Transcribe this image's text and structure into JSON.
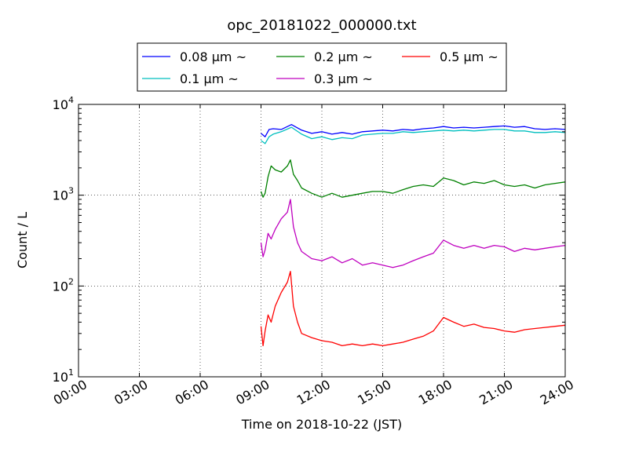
{
  "chart_data": {
    "type": "line",
    "title": "opc_20181022_000000.txt",
    "xlabel": "Time on 2018-10-22 (JST)",
    "ylabel": "Count / L",
    "x_unit": "hours",
    "xlim": [
      0,
      24
    ],
    "x_ticks": [
      {
        "value": 0,
        "label": "00:00"
      },
      {
        "value": 3,
        "label": "03:00"
      },
      {
        "value": 6,
        "label": "06:00"
      },
      {
        "value": 9,
        "label": "09:00"
      },
      {
        "value": 12,
        "label": "12:00"
      },
      {
        "value": 15,
        "label": "15:00"
      },
      {
        "value": 18,
        "label": "18:00"
      },
      {
        "value": 21,
        "label": "21:00"
      },
      {
        "value": 24,
        "label": "24:00"
      }
    ],
    "y_scale": "log",
    "ylim": [
      10,
      10000
    ],
    "y_ticks": [
      {
        "value": 10,
        "base": "10",
        "exp": "1"
      },
      {
        "value": 100,
        "base": "10",
        "exp": "2"
      },
      {
        "value": 1000,
        "base": "10",
        "exp": "3"
      },
      {
        "value": 10000,
        "base": "10",
        "exp": "4"
      }
    ],
    "grid": true,
    "legend_position": "top",
    "series": [
      {
        "name": "0.08 μm ~",
        "color": "#0000ff",
        "x": [
          9.0,
          9.2,
          9.4,
          9.6,
          10.0,
          10.5,
          11.0,
          11.5,
          12.0,
          12.5,
          13.0,
          13.5,
          14.0,
          14.5,
          15.0,
          15.5,
          16.0,
          16.5,
          17.0,
          17.5,
          18.0,
          18.5,
          19.0,
          19.5,
          20.0,
          20.5,
          21.0,
          21.5,
          22.0,
          22.5,
          23.0,
          23.5,
          24.0
        ],
        "y": [
          4800,
          4400,
          5300,
          5400,
          5300,
          6000,
          5200,
          4800,
          5000,
          4700,
          4900,
          4700,
          5000,
          5100,
          5200,
          5100,
          5300,
          5200,
          5400,
          5500,
          5700,
          5500,
          5600,
          5500,
          5600,
          5700,
          5800,
          5600,
          5700,
          5400,
          5300,
          5400,
          5300
        ]
      },
      {
        "name": "0.1 μm ~",
        "color": "#00bfbf",
        "x": [
          9.0,
          9.2,
          9.4,
          9.6,
          10.0,
          10.5,
          11.0,
          11.5,
          12.0,
          12.5,
          13.0,
          13.5,
          14.0,
          14.5,
          15.0,
          15.5,
          16.0,
          16.5,
          17.0,
          17.5,
          18.0,
          18.5,
          19.0,
          19.5,
          20.0,
          20.5,
          21.0,
          21.5,
          22.0,
          22.5,
          23.0,
          23.5,
          24.0
        ],
        "y": [
          4000,
          3700,
          4400,
          4700,
          5000,
          5600,
          4700,
          4200,
          4400,
          4100,
          4300,
          4200,
          4600,
          4700,
          4800,
          4800,
          5000,
          4900,
          5000,
          5100,
          5200,
          5100,
          5200,
          5100,
          5200,
          5300,
          5300,
          5100,
          5100,
          4900,
          4900,
          5000,
          4900
        ]
      },
      {
        "name": "0.2 μm ~",
        "color": "#008000",
        "x": [
          9.0,
          9.1,
          9.2,
          9.35,
          9.5,
          9.7,
          10.0,
          10.3,
          10.45,
          10.6,
          10.8,
          11.0,
          11.5,
          12.0,
          12.5,
          13.0,
          13.5,
          14.0,
          14.5,
          15.0,
          15.5,
          16.0,
          16.5,
          17.0,
          17.5,
          18.0,
          18.5,
          19.0,
          19.5,
          20.0,
          20.5,
          21.0,
          21.5,
          22.0,
          22.5,
          23.0,
          23.5,
          24.0
        ],
        "y": [
          1100,
          950,
          1050,
          1600,
          2100,
          1900,
          1800,
          2100,
          2450,
          1700,
          1450,
          1200,
          1050,
          950,
          1050,
          950,
          1000,
          1050,
          1100,
          1100,
          1050,
          1150,
          1250,
          1300,
          1250,
          1550,
          1450,
          1300,
          1400,
          1350,
          1450,
          1300,
          1250,
          1300,
          1200,
          1300,
          1350,
          1400
        ]
      },
      {
        "name": "0.3 μm ~",
        "color": "#bf00bf",
        "x": [
          9.0,
          9.1,
          9.2,
          9.35,
          9.5,
          9.7,
          10.0,
          10.3,
          10.45,
          10.6,
          10.8,
          11.0,
          11.5,
          12.0,
          12.5,
          13.0,
          13.5,
          14.0,
          14.5,
          15.0,
          15.5,
          16.0,
          16.5,
          17.0,
          17.5,
          18.0,
          18.5,
          19.0,
          19.5,
          20.0,
          20.5,
          21.0,
          21.5,
          22.0,
          22.5,
          23.0,
          23.5,
          24.0
        ],
        "y": [
          300,
          210,
          250,
          380,
          330,
          420,
          550,
          650,
          900,
          450,
          300,
          240,
          200,
          190,
          210,
          180,
          200,
          170,
          180,
          170,
          160,
          170,
          190,
          210,
          230,
          320,
          280,
          260,
          280,
          260,
          280,
          270,
          240,
          260,
          250,
          260,
          270,
          280
        ]
      },
      {
        "name": "0.5 μm ~",
        "color": "#ff0000",
        "x": [
          9.0,
          9.1,
          9.2,
          9.35,
          9.5,
          9.7,
          10.0,
          10.3,
          10.45,
          10.6,
          10.8,
          11.0,
          11.5,
          12.0,
          12.5,
          13.0,
          13.5,
          14.0,
          14.5,
          15.0,
          15.5,
          16.0,
          16.5,
          17.0,
          17.5,
          18.0,
          18.5,
          19.0,
          19.5,
          20.0,
          20.5,
          21.0,
          21.5,
          22.0,
          22.5,
          23.0,
          23.5,
          24.0
        ],
        "y": [
          36,
          22,
          32,
          48,
          40,
          60,
          85,
          110,
          145,
          60,
          40,
          30,
          27,
          25,
          24,
          22,
          23,
          22,
          23,
          22,
          23,
          24,
          26,
          28,
          32,
          45,
          40,
          36,
          38,
          35,
          34,
          32,
          31,
          33,
          34,
          35,
          36,
          37
        ]
      }
    ]
  }
}
